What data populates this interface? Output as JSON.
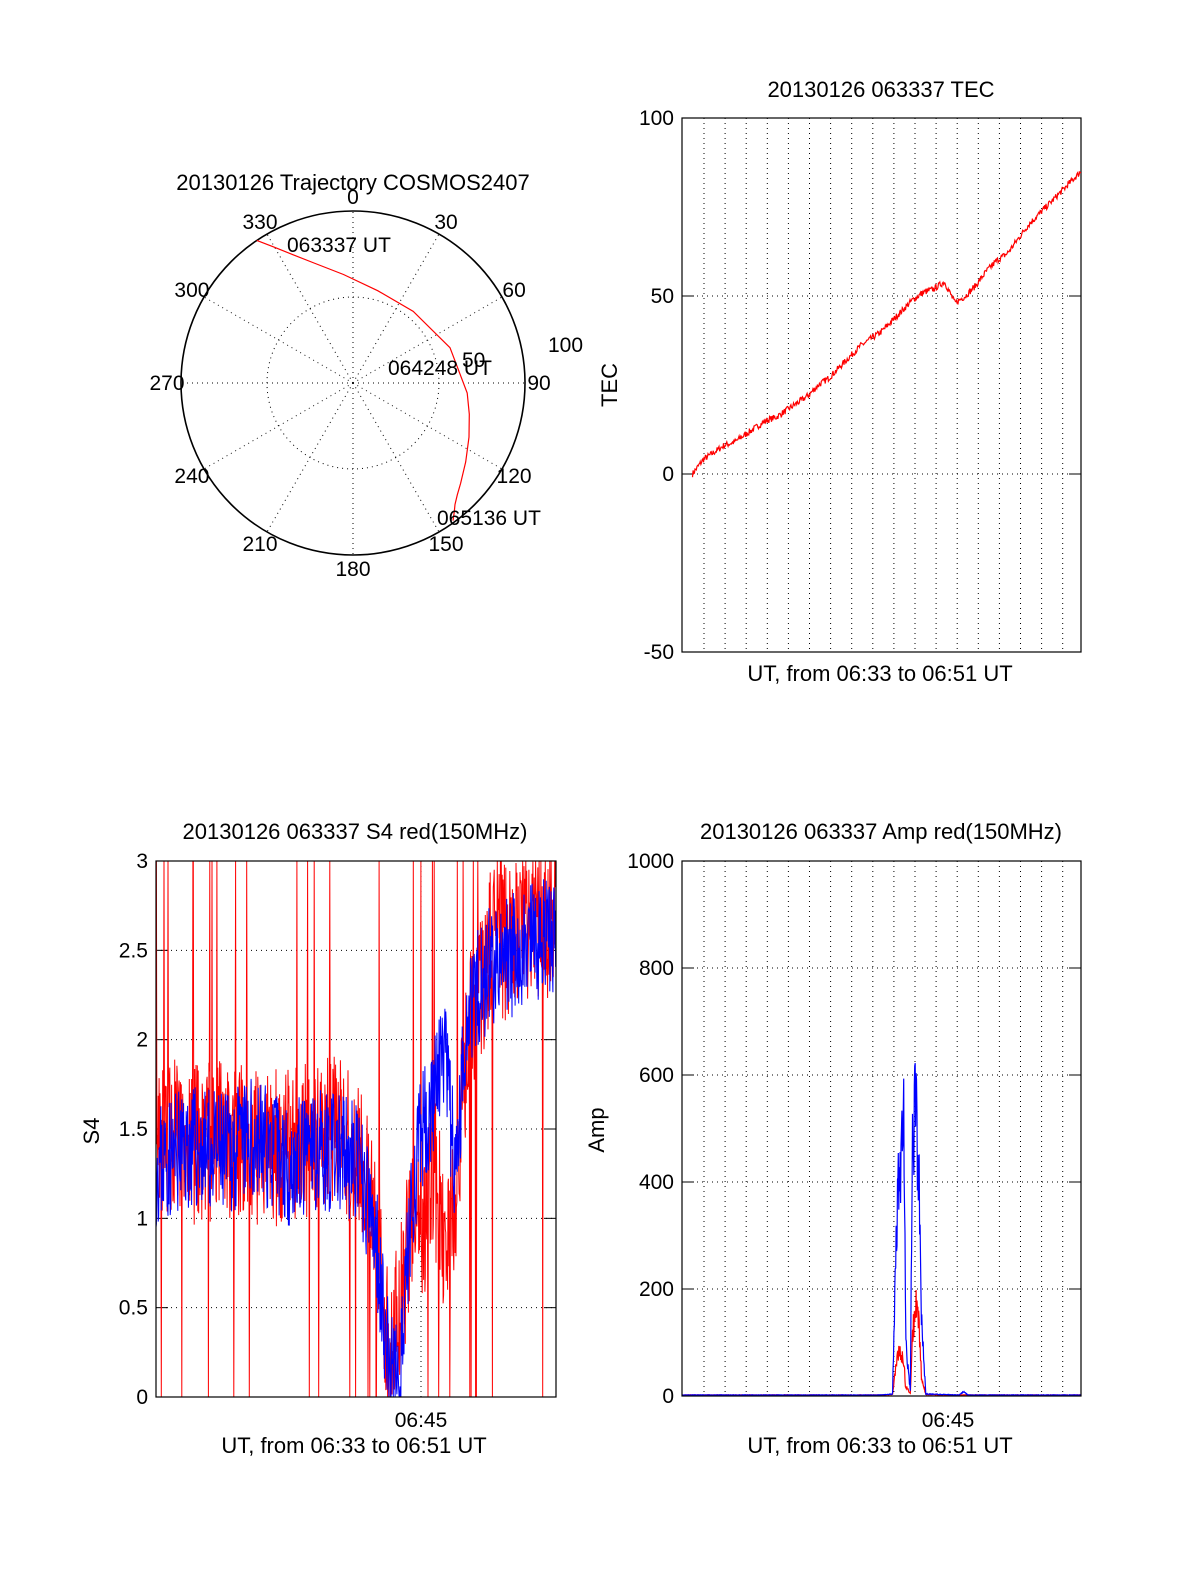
{
  "chart_data": [
    {
      "type": "scatter",
      "id": "polar",
      "title": "20130126 Trajectory COSMOS2407",
      "coordinate_system": "polar",
      "azimuth_labels": [
        "0",
        "30",
        "60",
        "90",
        "120",
        "150",
        "180",
        "210",
        "240",
        "270",
        "300",
        "330"
      ],
      "radial_ticks": [
        50,
        100
      ],
      "radial_tick_labels": [
        "50",
        "100"
      ],
      "rlim": [
        0,
        90
      ],
      "grid": true,
      "series": [
        {
          "color": "#ff0000",
          "azimuth_deg": [
            -34,
            -30,
            -25,
            -18,
            -5,
            15,
            40,
            70,
            95,
            105,
            115,
            125,
            133,
            137,
            140,
            142,
            144
          ],
          "zenith": [
            90,
            82,
            74,
            66,
            57,
            50,
            49,
            54,
            60,
            63,
            67,
            72,
            77,
            80,
            83,
            86,
            89
          ]
        }
      ],
      "annotations": [
        {
          "text": "063337 UT",
          "azimuth_deg": -34,
          "zenith": 90
        },
        {
          "text": "064248 UT",
          "azimuth_deg": 95,
          "zenith": 18
        },
        {
          "text": "065136 UT",
          "azimuth_deg": 144,
          "zenith": 89
        }
      ]
    },
    {
      "type": "line",
      "id": "tec",
      "title": "20130126 063337 TEC",
      "xlabel": "UT, from 06:33 to 06:51 UT",
      "ylabel": "TEC",
      "ylim": [
        -50,
        100
      ],
      "yticks": [
        -50,
        0,
        50,
        100
      ],
      "xlim": [
        6.55,
        6.8667
      ],
      "grid": true,
      "series": [
        {
          "color": "#ff0000",
          "x": [
            6.5583,
            6.5667,
            6.575,
            6.5833,
            6.5917,
            6.6,
            6.6083,
            6.6167,
            6.625,
            6.6333,
            6.6417,
            6.65,
            6.6583,
            6.6667,
            6.675,
            6.6833,
            6.6917,
            6.7,
            6.7083,
            6.7167,
            6.725,
            6.7333,
            6.7417,
            6.75,
            6.7583,
            6.7667,
            6.775,
            6.7833,
            6.7917,
            6.8,
            6.8083,
            6.8167,
            6.825,
            6.8333,
            6.8417,
            6.85,
            6.8583,
            6.8667
          ],
          "values": [
            0,
            4,
            6,
            8,
            9,
            11,
            13,
            15,
            16,
            18,
            20,
            22,
            25,
            27,
            30,
            33,
            36,
            38,
            40,
            43,
            46,
            49,
            51,
            52,
            54,
            48,
            50,
            53,
            57,
            60,
            62,
            66,
            70,
            73,
            76,
            79,
            82,
            85
          ]
        }
      ]
    },
    {
      "type": "line",
      "id": "s4",
      "title": "20130126 063337 S4 red(150MHz)",
      "xlabel": "UT, from 06:33 to 06:51 UT",
      "ylabel": "S4",
      "ylim": [
        0,
        3
      ],
      "yticks": [
        0,
        0.5,
        1,
        1.5,
        2,
        2.5,
        3
      ],
      "ytick_labels": [
        "0",
        "0.5",
        "1",
        "1.5",
        "2",
        "2.5",
        "3"
      ],
      "xlim": [
        6.55,
        6.85
      ],
      "xticks": [
        6.75
      ],
      "xtick_labels": [
        "06:45"
      ],
      "grid": true,
      "series": [
        {
          "color": "#ff0000",
          "x": [
            6.55,
            6.575,
            6.6,
            6.625,
            6.65,
            6.675,
            6.7,
            6.7083,
            6.7167,
            6.725,
            6.7333,
            6.7417,
            6.75,
            6.7583,
            6.7667,
            6.775,
            6.7833,
            6.8,
            6.825,
            6.85
          ],
          "values": [
            1.5,
            1.4,
            1.45,
            1.4,
            1.4,
            1.5,
            1.4,
            1.2,
            0.9,
            0.2,
            0.5,
            1.0,
            0.9,
            1.3,
            0.8,
            1.2,
            2.0,
            2.5,
            2.6,
            2.7
          ]
        },
        {
          "color": "#0000ff",
          "x": [
            6.55,
            6.575,
            6.6,
            6.625,
            6.65,
            6.675,
            6.7,
            6.7083,
            6.7167,
            6.725,
            6.7333,
            6.7417,
            6.75,
            6.7583,
            6.7667,
            6.775,
            6.7833,
            6.8,
            6.825,
            6.85
          ],
          "values": [
            1.3,
            1.4,
            1.35,
            1.45,
            1.3,
            1.4,
            1.3,
            1.1,
            0.8,
            0.15,
            0.1,
            1.1,
            1.5,
            1.7,
            1.9,
            1.2,
            2.2,
            2.4,
            2.5,
            2.6
          ]
        }
      ]
    },
    {
      "type": "line",
      "id": "amp",
      "title": "20130126 063337 Amp red(150MHz)",
      "xlabel": "UT, from 06:33 to 06:51 UT",
      "ylabel": "Amp",
      "ylim": [
        0,
        1000
      ],
      "yticks": [
        0,
        200,
        400,
        600,
        800,
        1000
      ],
      "xlim": [
        6.55,
        6.85
      ],
      "xticks": [
        6.75
      ],
      "xtick_labels": [
        "06:45"
      ],
      "grid": true,
      "series": [
        {
          "color": "#ff0000",
          "x": [
            6.55,
            6.7,
            6.7083,
            6.711,
            6.7133,
            6.7167,
            6.718,
            6.7217,
            6.7233,
            6.725,
            6.7267,
            6.7283,
            6.73,
            6.7333,
            6.75,
            6.85
          ],
          "values": [
            2,
            2,
            3,
            60,
            90,
            70,
            20,
            5,
            120,
            160,
            200,
            130,
            40,
            3,
            2,
            2
          ]
        },
        {
          "color": "#0000ff",
          "x": [
            6.55,
            6.7,
            6.7083,
            6.711,
            6.7133,
            6.7167,
            6.7183,
            6.7217,
            6.7233,
            6.725,
            6.7267,
            6.7283,
            6.73,
            6.7333,
            6.7583,
            6.7617,
            6.765,
            6.85
          ],
          "values": [
            2,
            2,
            4,
            300,
            450,
            520,
            100,
            8,
            500,
            550,
            520,
            400,
            150,
            4,
            2,
            8,
            2,
            2
          ]
        }
      ]
    }
  ]
}
